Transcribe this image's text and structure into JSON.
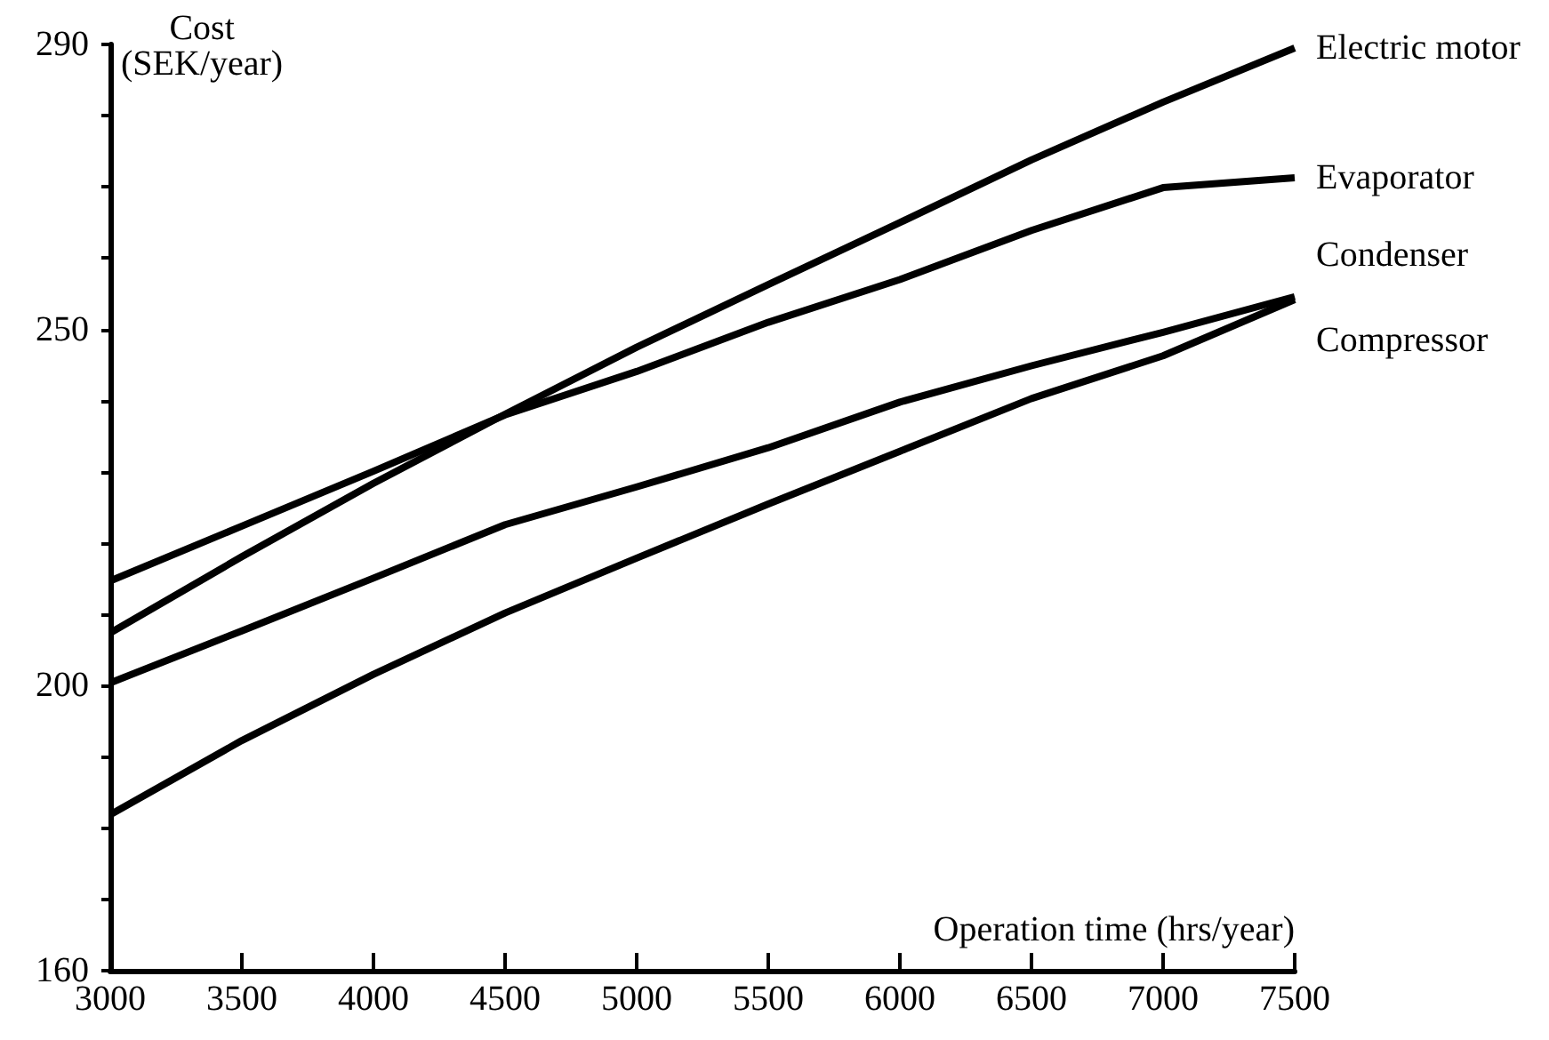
{
  "chart_data": {
    "type": "line",
    "xlabel": "Operation time (hrs/year)",
    "ylabel": "Cost\n(SEK/year)",
    "x": [
      3000,
      3500,
      4000,
      4500,
      5000,
      5500,
      6000,
      6500,
      7000,
      7500
    ],
    "series": [
      {
        "name": "Electric motor",
        "color": "#000000",
        "values": [
          207.4,
          218.1,
          228.4,
          238.1,
          247.5,
          256.3,
          265,
          273.8,
          281.9,
          289.5
        ]
      },
      {
        "name": "Evaporator",
        "color": "#000000",
        "values": [
          214.7,
          222.4,
          230.1,
          238,
          244.1,
          251,
          257,
          263.9,
          269.9,
          271.3
        ]
      },
      {
        "name": "Condenser",
        "color": "#000000",
        "values": [
          200.4,
          207.7,
          215.1,
          222.6,
          227.9,
          233.4,
          239.8,
          244.9,
          249.6,
          254.6
        ]
      },
      {
        "name": "Compressor",
        "color": "#000000",
        "values": [
          181.9,
          192.3,
          201.6,
          210.2,
          217.9,
          225.5,
          232.9,
          240.3,
          246.3,
          254.2
        ]
      }
    ],
    "xlim": [
      3000,
      7500
    ],
    "xticks": [
      3000,
      3500,
      4000,
      4500,
      5000,
      5500,
      6000,
      6500,
      7000,
      7500
    ],
    "ylim": [
      160,
      290
    ],
    "yticks": [
      160,
      {
        "value": 170,
        "label": null
      },
      {
        "value": 180,
        "label": null
      },
      {
        "value": 190,
        "label": null
      },
      200,
      {
        "value": 210,
        "label": null
      },
      {
        "value": 220,
        "label": null
      },
      {
        "value": 230,
        "label": null
      },
      {
        "value": 240,
        "label": null
      },
      250,
      {
        "value": 260,
        "label": null
      },
      {
        "value": 270,
        "label": null
      },
      {
        "value": 280,
        "label": null
      },
      290
    ],
    "grid": false,
    "legend": false,
    "marker": "none",
    "line_style": "solid"
  }
}
